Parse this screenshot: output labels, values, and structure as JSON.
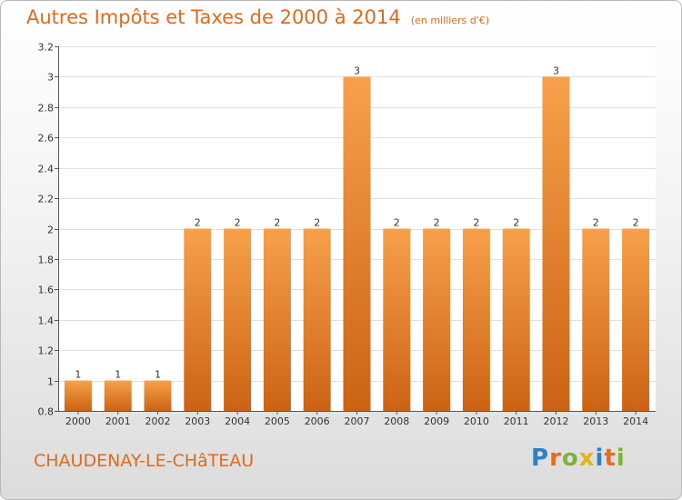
{
  "title": "Autres Impôts et Taxes de 2000 à 2014",
  "unit": "(en milliers d'€)",
  "commune": "CHAUDENAY-LE-CHâTEAU",
  "logo": {
    "text": "Proxiti",
    "colors": [
      "#2f7fc6",
      "#e86a1c",
      "#7fb23a",
      "#e3b412",
      "#2f7fc6",
      "#e86a1c",
      "#7fb23a"
    ]
  },
  "colors": {
    "bar_light": "#f7a04a",
    "bar_dark": "#cc6314",
    "accent": "#e0691c",
    "grid": "#e0e0e0",
    "axis": "#555555",
    "text": "#333333"
  },
  "chart_data": {
    "type": "bar",
    "categories": [
      "2000",
      "2001",
      "2002",
      "2003",
      "2004",
      "2005",
      "2006",
      "2007",
      "2008",
      "2009",
      "2010",
      "2011",
      "2012",
      "2013",
      "2014"
    ],
    "values": [
      1,
      1,
      1,
      2,
      2,
      2,
      2,
      3,
      2,
      2,
      2,
      2,
      3,
      2,
      2
    ],
    "data_labels": [
      "1",
      "1",
      "1",
      "2",
      "2",
      "2",
      "2",
      "3",
      "2",
      "2",
      "2",
      "2",
      "3",
      "2",
      "2"
    ],
    "title": "Autres Impôts et Taxes de 2000 à 2014",
    "ylim": [
      0.8,
      3.2
    ],
    "y_ticks": [
      0.8,
      1,
      1.2,
      1.4,
      1.6,
      1.8,
      2,
      2.2,
      2.4,
      2.6,
      2.8,
      3,
      3.2
    ],
    "y_tick_labels": [
      "0.8",
      "1",
      "1.2",
      "1.4",
      "1.6",
      "1.8",
      "2",
      "2.2",
      "2.4",
      "2.6",
      "2.8",
      "3",
      "3.2"
    ],
    "grid": true,
    "legend": false
  }
}
